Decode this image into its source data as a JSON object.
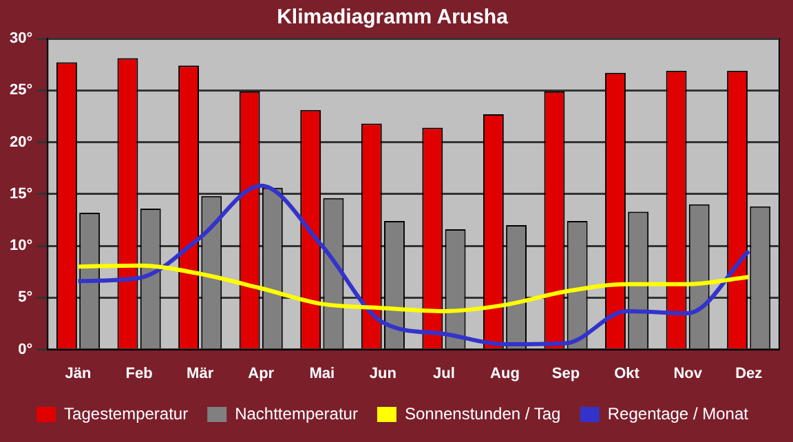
{
  "chart_data": {
    "type": "bar",
    "title": "Klimadiagramm Arusha",
    "categories": [
      "Jän",
      "Feb",
      "Mär",
      "Apr",
      "Mai",
      "Jun",
      "Jul",
      "Aug",
      "Sep",
      "Okt",
      "Nov",
      "Dez"
    ],
    "series": [
      {
        "name": "Tagestemperatur",
        "color": "#e00000",
        "values": [
          27.7,
          28.1,
          27.4,
          24.9,
          23.1,
          21.8,
          21.4,
          22.7,
          24.9,
          26.7,
          26.9,
          26.9
        ]
      },
      {
        "name": "Nachttemperatur",
        "color": "#808080",
        "values": [
          13.2,
          13.6,
          14.8,
          15.6,
          14.6,
          12.4,
          11.6,
          12.0,
          12.4,
          13.3,
          14.0,
          13.8
        ]
      },
      {
        "name": "Sonnenstunden / Tag",
        "type": "line",
        "color": "#ffff00",
        "values": [
          8.0,
          8.1,
          7.3,
          5.9,
          4.4,
          4.0,
          3.7,
          4.3,
          5.6,
          6.3,
          6.3,
          7.0
        ]
      },
      {
        "name": "Regentage / Monat",
        "type": "line",
        "color": "#3333cc",
        "values": [
          6.6,
          6.9,
          10.8,
          15.8,
          10.0,
          2.6,
          1.5,
          0.5,
          0.6,
          3.7,
          3.5,
          9.5
        ]
      }
    ],
    "ylim": [
      0,
      30
    ],
    "yticks": [
      {
        "value": 0,
        "label": "0°"
      },
      {
        "value": 5,
        "label": "5°"
      },
      {
        "value": 10,
        "label": "10°"
      },
      {
        "value": 15,
        "label": "15°"
      },
      {
        "value": 20,
        "label": "20°"
      },
      {
        "value": 25,
        "label": "25°"
      },
      {
        "value": 30,
        "label": "30°"
      }
    ],
    "grid": "y",
    "legend": "bottom",
    "marker": "none",
    "line_style": "solid"
  }
}
